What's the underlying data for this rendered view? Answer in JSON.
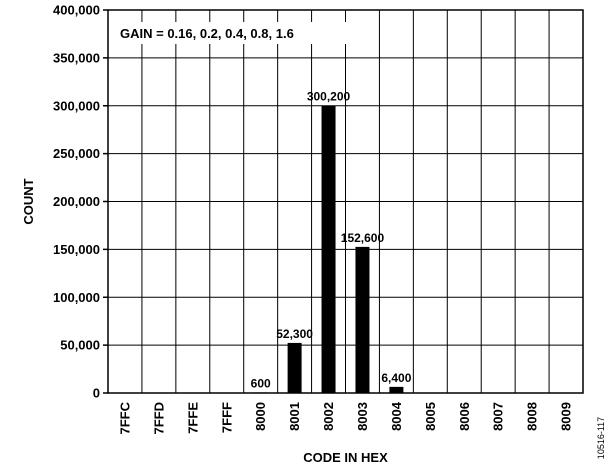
{
  "chart_data": {
    "type": "bar",
    "categories": [
      "7FFC",
      "7FFD",
      "7FFE",
      "7FFF",
      "8000",
      "8001",
      "8002",
      "8003",
      "8004",
      "8005",
      "8006",
      "8007",
      "8008",
      "8009"
    ],
    "values": [
      0,
      0,
      0,
      0,
      600,
      52300,
      300200,
      152600,
      6400,
      0,
      0,
      0,
      0,
      0
    ],
    "data_labels": [
      "",
      "",
      "",
      "",
      "600",
      "52,300",
      "300,200",
      "152,600",
      "6,400",
      "",
      "",
      "",
      "",
      ""
    ],
    "xlabel": "CODE IN HEX",
    "ylabel": "COUNT",
    "ylim": [
      0,
      400000
    ],
    "yticks": [
      0,
      50000,
      100000,
      150000,
      200000,
      250000,
      300000,
      350000,
      400000
    ],
    "ytick_labels": [
      "0",
      "50,000",
      "100,000",
      "150,000",
      "200,000",
      "250,000",
      "300,000",
      "350,000",
      "400,000"
    ],
    "annotation": "GAIN = 0.16, 0.2, 0.4, 0.8, 1.6",
    "grid": true,
    "bar_color": "#000000"
  },
  "figure_id": "10516-117"
}
